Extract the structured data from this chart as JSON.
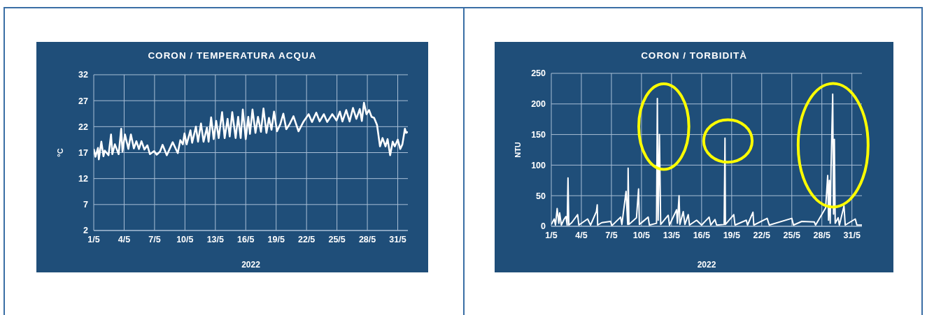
{
  "chart_data": [
    {
      "type": "line",
      "title": "CORON / TEMPERATURA  ACQUA",
      "xlabel": "2022",
      "ylabel": "°C",
      "color": "#ffffff",
      "grid": true,
      "x": [
        "2022-05-01T00:00",
        "2022-05-01T04:00",
        "2022-05-01T10:00",
        "2022-05-01T12:00",
        "2022-05-01T18:00",
        "2022-05-01T23:00",
        "2022-05-02T02:00",
        "2022-05-02T11:00",
        "2022-05-02T17:00",
        "2022-05-02T20:00",
        "2022-05-03T02:00",
        "2022-05-03T11:00",
        "2022-05-03T17:00",
        "2022-05-03T20:00",
        "2022-05-04T02:00",
        "2022-05-04T10:00",
        "2022-05-04T16:00",
        "2022-05-04T23:00",
        "2022-05-05T05:00",
        "2022-05-05T11:00",
        "2022-05-05T17:00",
        "2022-05-06T00:00",
        "2022-05-06T07:00",
        "2022-05-06T13:00",
        "2022-05-06T23:00",
        "2022-05-07T05:00",
        "2022-05-07T13:00",
        "2022-05-07T19:00",
        "2022-05-08T05:00",
        "2022-05-08T19:00",
        "2022-05-09T07:00",
        "2022-05-09T13:00",
        "2022-05-09T19:00",
        "2022-05-09T23:00",
        "2022-05-10T04:00",
        "2022-05-10T13:00",
        "2022-05-10T17:00",
        "2022-05-11T02:00",
        "2022-05-11T07:00",
        "2022-05-11T14:00",
        "2022-05-11T20:00",
        "2022-05-12T04:00",
        "2022-05-12T08:00",
        "2022-05-12T14:00",
        "2022-05-12T20:00",
        "2022-05-13T02:00",
        "2022-05-13T08:00",
        "2022-05-13T16:00",
        "2022-05-13T22:00",
        "2022-05-14T05:00",
        "2022-05-14T10:00",
        "2022-05-14T16:00",
        "2022-05-15T00:00",
        "2022-05-15T06:00",
        "2022-05-15T12:00",
        "2022-05-15T17:00",
        "2022-05-16T00:00",
        "2022-05-16T06:00",
        "2022-05-16T10:00",
        "2022-05-16T16:00",
        "2022-05-16T23:00",
        "2022-05-17T05:00",
        "2022-05-17T12:00",
        "2022-05-17T18:00",
        "2022-05-18T01:00",
        "2022-05-18T07:00",
        "2022-05-18T13:00",
        "2022-05-18T19:00",
        "2022-05-19T02:00",
        "2022-05-19T10:00",
        "2022-05-19T17:00",
        "2022-05-20T00:00",
        "2022-05-20T08:00",
        "2022-05-20T17:00",
        "2022-05-21T05:00",
        "2022-05-21T17:00",
        "2022-05-22T05:00",
        "2022-05-22T13:00",
        "2022-05-22T23:00",
        "2022-05-23T07:00",
        "2022-05-23T17:00",
        "2022-05-24T01:00",
        "2022-05-24T13:00",
        "2022-05-24T23:00",
        "2022-05-25T07:00",
        "2022-05-25T13:00",
        "2022-05-25T22:00",
        "2022-05-26T06:00",
        "2022-05-26T14:00",
        "2022-05-26T22:00",
        "2022-05-27T06:00",
        "2022-05-27T11:00",
        "2022-05-27T16:00",
        "2022-05-27T22:00",
        "2022-05-28T04:00",
        "2022-05-28T10:00",
        "2022-05-28T16:00",
        "2022-05-28T23:00",
        "2022-05-29T06:00",
        "2022-05-29T12:00",
        "2022-05-29T19:00",
        "2022-05-30T00:00",
        "2022-05-30T06:00",
        "2022-05-30T12:00",
        "2022-05-30T17:00",
        "2022-05-31T00:00",
        "2022-05-31T06:00",
        "2022-05-31T11:00",
        "2022-05-31T17:00",
        "2022-05-31T20:00",
        "2022-06-01T00:00"
      ],
      "values": [
        17.7,
        16.2,
        17.9,
        15.7,
        19.1,
        16.3,
        17.4,
        16.5,
        20.5,
        16.7,
        18.6,
        16.7,
        21.6,
        17.2,
        20.5,
        17.7,
        20.5,
        17.8,
        19.2,
        17.7,
        19.2,
        17.6,
        18.4,
        16.7,
        17.3,
        16.6,
        17.2,
        18.5,
        16.5,
        19.0,
        16.9,
        19.4,
        18.6,
        20.7,
        18.6,
        21.3,
        18.9,
        22.0,
        19.1,
        22.6,
        19.1,
        21.8,
        19.1,
        23.8,
        19.6,
        23.1,
        19.8,
        24.8,
        19.8,
        23.5,
        20.1,
        24.8,
        19.8,
        23.9,
        19.8,
        25.3,
        19.6,
        23.9,
        20.6,
        25.3,
        20.8,
        23.9,
        21.0,
        25.5,
        20.8,
        23.7,
        21.4,
        24.9,
        21.1,
        22.5,
        24.5,
        21.5,
        22.5,
        24.0,
        21.1,
        23.0,
        24.4,
        22.9,
        24.7,
        23.0,
        24.4,
        22.9,
        24.4,
        23.2,
        24.9,
        23.0,
        25.2,
        23.0,
        25.6,
        23.5,
        25.4,
        23.1,
        26.6,
        24.4,
        25.2,
        23.9,
        23.7,
        22.3,
        18.2,
        19.8,
        18.2,
        19.6,
        16.5,
        19.1,
        18.2,
        19.5,
        17.7,
        18.6,
        21.6,
        20.8,
        21.0
      ],
      "xlim": [
        "2022-05-01",
        "2022-06-01"
      ],
      "xticks": [
        {
          "value": "2022-05-01",
          "label": "1/5"
        },
        {
          "value": "2022-05-04",
          "label": "4/5"
        },
        {
          "value": "2022-05-07",
          "label": "7/5"
        },
        {
          "value": "2022-05-10",
          "label": "10/5"
        },
        {
          "value": "2022-05-13",
          "label": "13/5"
        },
        {
          "value": "2022-05-16",
          "label": "16/5"
        },
        {
          "value": "2022-05-19",
          "label": "19/5"
        },
        {
          "value": "2022-05-22",
          "label": "22/5"
        },
        {
          "value": "2022-05-25",
          "label": "25/5"
        },
        {
          "value": "2022-05-28",
          "label": "28/5"
        },
        {
          "value": "2022-05-31",
          "label": "31/5"
        }
      ],
      "ylim": [
        2,
        32
      ],
      "yticks": [
        2,
        7,
        12,
        17,
        22,
        27,
        32
      ]
    },
    {
      "type": "line",
      "title": "CORON / TORBIDITÀ",
      "xlabel": "2022",
      "ylabel": "NTU",
      "color": "#ffffff",
      "grid": true,
      "x": [
        "2022-05-01T00:00",
        "2022-05-01T07:00",
        "2022-05-01T10:00",
        "2022-05-01T14:00",
        "2022-05-01T18:00",
        "2022-05-01T20:00",
        "2022-05-02T00:00",
        "2022-05-02T07:00",
        "2022-05-02T11:00",
        "2022-05-02T14:00",
        "2022-05-02T16:00",
        "2022-05-02T18:00",
        "2022-05-03T01:00",
        "2022-05-03T15:00",
        "2022-05-03T18:00",
        "2022-05-04T15:00",
        "2022-05-04T22:00",
        "2022-05-05T12:00",
        "2022-05-05T14:00",
        "2022-05-05T15:00",
        "2022-05-06T01:00",
        "2022-05-06T22:00",
        "2022-05-07T01:00",
        "2022-05-07T22:00",
        "2022-05-08T01:00",
        "2022-05-08T11:00",
        "2022-05-08T15:00",
        "2022-05-08T16:00",
        "2022-05-08T18:00",
        "2022-05-09T12:00",
        "2022-05-09T17:00",
        "2022-05-09T19:00",
        "2022-05-10T16:00",
        "2022-05-10T19:00",
        "2022-05-11T12:00",
        "2022-05-11T14:00",
        "2022-05-11T16:00",
        "2022-05-11T19:00",
        "2022-05-11T22:00",
        "2022-05-12T16:00",
        "2022-05-12T19:00",
        "2022-05-13T12:00",
        "2022-05-13T14:00",
        "2022-05-13T18:00",
        "2022-05-13T20:00",
        "2022-05-14T04:00",
        "2022-05-14T08:00",
        "2022-05-14T16:00",
        "2022-05-14T19:00",
        "2022-05-15T12:00",
        "2022-05-16T00:00",
        "2022-05-16T18:00",
        "2022-05-16T22:00",
        "2022-05-17T08:00",
        "2022-05-17T12:00",
        "2022-05-18T06:00",
        "2022-05-18T08:00",
        "2022-05-18T09:00",
        "2022-05-19T05:00",
        "2022-05-19T08:00",
        "2022-05-20T11:00",
        "2022-05-20T14:00",
        "2022-05-21T03:00",
        "2022-05-21T05:00",
        "2022-05-22T13:00",
        "2022-05-22T18:00",
        "2022-05-25T00:00",
        "2022-05-25T04:00",
        "2022-05-26T00:00",
        "2022-05-27T06:00",
        "2022-05-27T09:00",
        "2022-05-28T09:00",
        "2022-05-28T14:00",
        "2022-05-28T16:00",
        "2022-05-28T18:00",
        "2022-05-28T20:00",
        "2022-05-28T22:00",
        "2022-05-29T02:00",
        "2022-05-29T04:00",
        "2022-05-29T06:00",
        "2022-05-29T08:00",
        "2022-05-29T15:00",
        "2022-05-29T18:00",
        "2022-05-30T05:00",
        "2022-05-30T08:00",
        "2022-05-31T08:00",
        "2022-05-31T12:00",
        "2022-06-01T00:00"
      ],
      "values": [
        3,
        12,
        2,
        29,
        5,
        22,
        2,
        12,
        16,
        2,
        79,
        2,
        6,
        19,
        2,
        12,
        2,
        24,
        35,
        2,
        6,
        8,
        1,
        15,
        3,
        57,
        3,
        95,
        3,
        14,
        61,
        3,
        15,
        2,
        5,
        209,
        10,
        150,
        3,
        18,
        2,
        27,
        5,
        50,
        3,
        24,
        3,
        19,
        2,
        10,
        2,
        15,
        2,
        11,
        2,
        3,
        144,
        3,
        19,
        2,
        10,
        2,
        23,
        2,
        13,
        2,
        13,
        2,
        8,
        7,
        2,
        30,
        83,
        10,
        75,
        5,
        95,
        216,
        20,
        142,
        5,
        14,
        2,
        33,
        2,
        12,
        2,
        2
      ],
      "xlim": [
        "2022-05-01",
        "2022-06-01"
      ],
      "xticks": [
        {
          "value": "2022-05-01",
          "label": "1/5"
        },
        {
          "value": "2022-05-04",
          "label": "4/5"
        },
        {
          "value": "2022-05-07",
          "label": "7/5"
        },
        {
          "value": "2022-05-10",
          "label": "10/5"
        },
        {
          "value": "2022-05-13",
          "label": "13/5"
        },
        {
          "value": "2022-05-16",
          "label": "16/5"
        },
        {
          "value": "2022-05-19",
          "label": "19/5"
        },
        {
          "value": "2022-05-22",
          "label": "22/5"
        },
        {
          "value": "2022-05-25",
          "label": "25/5"
        },
        {
          "value": "2022-05-28",
          "label": "28/5"
        },
        {
          "value": "2022-05-31",
          "label": "31/5"
        }
      ],
      "ylim": [
        0,
        250
      ],
      "yticks": [
        0,
        50,
        100,
        150,
        200,
        250
      ]
    }
  ]
}
